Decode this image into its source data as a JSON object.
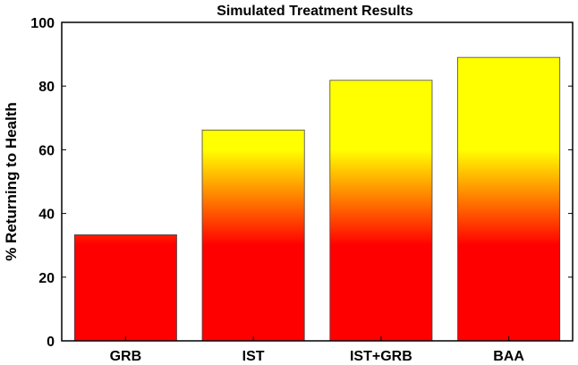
{
  "chart_data": {
    "type": "bar",
    "title": "Simulated Treatment Results",
    "xlabel": "",
    "ylabel": "% Returning to Health",
    "categories": [
      "GRB",
      "IST",
      "IST+GRB",
      "BAA"
    ],
    "values": [
      33.3,
      66.2,
      81.8,
      89.0
    ],
    "ylim": [
      0,
      100
    ],
    "yticks": [
      0,
      20,
      40,
      60,
      80,
      100
    ],
    "ytick_labels": [
      "0",
      "20",
      "40",
      "60",
      "80",
      "100"
    ],
    "grid": false,
    "legend": "none",
    "colors": {
      "bar_bottom": "#ff0000",
      "bar_top": "#ffff00",
      "axis": "#000000"
    }
  }
}
